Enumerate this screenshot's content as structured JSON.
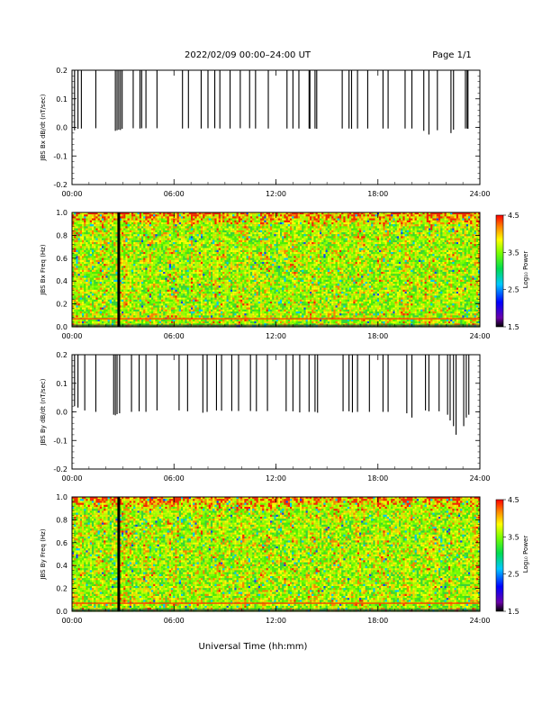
{
  "header": {
    "title": "2022/02/09  00:00–24:00 UT",
    "page": "Page 1/1"
  },
  "footer": {
    "xlabel": "Universal Time (hh:mm)"
  },
  "chart_data": [
    {
      "type": "line",
      "ylabel": "JBS Bx dB/dt (nT/sec)",
      "xticks": [
        "00:00",
        "06:00",
        "12:00",
        "18:00",
        "24:00"
      ],
      "yticks": [
        "-0.2",
        "-0.1",
        "0.0",
        "0.1",
        "0.2"
      ],
      "xlim": [
        0,
        24
      ],
      "ylim": [
        -0.2,
        0.2
      ],
      "spikes": [
        {
          "t": 0.15,
          "low": -0.01
        },
        {
          "t": 0.35,
          "low": -0.005
        },
        {
          "t": 0.55,
          "low": -0.004
        },
        {
          "t": 1.4,
          "low": -0.003
        },
        {
          "t": 2.55,
          "low": -0.012
        },
        {
          "t": 2.65,
          "low": -0.01
        },
        {
          "t": 2.75,
          "low": -0.008
        },
        {
          "t": 2.85,
          "low": -0.009
        },
        {
          "t": 2.95,
          "low": -0.005
        },
        {
          "t": 3.6,
          "low": -0.003
        },
        {
          "t": 4.0,
          "low": -0.004
        },
        {
          "t": 4.1,
          "low": -0.003
        },
        {
          "t": 4.35,
          "low": -0.003
        },
        {
          "t": 5.0,
          "low": -0.003
        },
        {
          "t": 6.5,
          "low": -0.004
        },
        {
          "t": 6.85,
          "low": -0.003
        },
        {
          "t": 7.6,
          "low": -0.004
        },
        {
          "t": 8.0,
          "low": -0.003
        },
        {
          "t": 8.4,
          "low": -0.003
        },
        {
          "t": 8.7,
          "low": -0.004
        },
        {
          "t": 9.3,
          "low": -0.004
        },
        {
          "t": 9.9,
          "low": -0.003
        },
        {
          "t": 10.45,
          "low": -0.003
        },
        {
          "t": 10.8,
          "low": -0.004
        },
        {
          "t": 11.55,
          "low": -0.004
        },
        {
          "t": 12.65,
          "low": -0.004
        },
        {
          "t": 13.0,
          "low": -0.004
        },
        {
          "t": 13.35,
          "low": -0.004
        },
        {
          "t": 13.95,
          "low": -0.004
        },
        {
          "t": 14.0,
          "low": -0.005
        },
        {
          "t": 14.3,
          "low": -0.004
        },
        {
          "t": 14.4,
          "low": -0.005
        },
        {
          "t": 15.9,
          "low": -0.004
        },
        {
          "t": 16.3,
          "low": -0.004
        },
        {
          "t": 16.45,
          "low": -0.005
        },
        {
          "t": 16.8,
          "low": -0.004
        },
        {
          "t": 17.4,
          "low": -0.004
        },
        {
          "t": 18.3,
          "low": -0.004
        },
        {
          "t": 18.6,
          "low": -0.004
        },
        {
          "t": 19.6,
          "low": -0.004
        },
        {
          "t": 20.0,
          "low": -0.004
        },
        {
          "t": 20.7,
          "low": -0.012
        },
        {
          "t": 21.0,
          "low": -0.025
        },
        {
          "t": 21.5,
          "low": -0.01
        },
        {
          "t": 22.3,
          "low": -0.02
        },
        {
          "t": 22.45,
          "low": -0.008
        },
        {
          "t": 23.15,
          "low": -0.004
        },
        {
          "t": 23.25,
          "low": -0.004
        },
        {
          "t": 23.3,
          "low": -0.005
        }
      ]
    },
    {
      "type": "heatmap",
      "ylabel": "JBS Bx Freq (Hz)",
      "xticks": [
        "00:00",
        "06:00",
        "12:00",
        "18:00",
        "24:00"
      ],
      "yticks": [
        "0.0",
        "0.2",
        "0.4",
        "0.6",
        "0.8",
        "1.0"
      ],
      "xlim": [
        0,
        24
      ],
      "ylim": [
        0,
        1.0
      ],
      "gap_time": 2.75,
      "line_freq": 0.07,
      "colorbar": {
        "label": "Log₁₀ Power",
        "ticks": [
          "1.5",
          "2.5",
          "3.5",
          "4.5"
        ],
        "range": [
          1.5,
          4.5
        ]
      }
    },
    {
      "type": "line",
      "ylabel": "JBS By dB/dt (nT/sec)",
      "xticks": [
        "00:00",
        "06:00",
        "12:00",
        "18:00",
        "24:00"
      ],
      "yticks": [
        "-0.2",
        "-0.1",
        "0.0",
        "0.1",
        "0.2"
      ],
      "xlim": [
        0,
        24
      ],
      "ylim": [
        -0.2,
        0.2
      ],
      "spikes": [
        {
          "t": 0.15,
          "low": 0.02
        },
        {
          "t": 0.35,
          "low": 0.015
        },
        {
          "t": 0.75,
          "low": 0.005
        },
        {
          "t": 1.4,
          "low": 0.0
        },
        {
          "t": 2.45,
          "low": -0.01
        },
        {
          "t": 2.55,
          "low": -0.012
        },
        {
          "t": 2.65,
          "low": -0.008
        },
        {
          "t": 2.8,
          "low": -0.005
        },
        {
          "t": 3.5,
          "low": 0.0
        },
        {
          "t": 3.95,
          "low": 0.002
        },
        {
          "t": 4.35,
          "low": 0.0
        },
        {
          "t": 5.0,
          "low": 0.005
        },
        {
          "t": 6.3,
          "low": 0.005
        },
        {
          "t": 6.8,
          "low": 0.002
        },
        {
          "t": 7.7,
          "low": -0.003
        },
        {
          "t": 7.95,
          "low": 0.0
        },
        {
          "t": 8.5,
          "low": 0.005
        },
        {
          "t": 8.8,
          "low": 0.004
        },
        {
          "t": 9.4,
          "low": 0.003
        },
        {
          "t": 9.8,
          "low": 0.003
        },
        {
          "t": 10.5,
          "low": 0.003
        },
        {
          "t": 10.85,
          "low": 0.002
        },
        {
          "t": 11.5,
          "low": 0.003
        },
        {
          "t": 12.6,
          "low": 0.002
        },
        {
          "t": 13.0,
          "low": 0.002
        },
        {
          "t": 13.4,
          "low": -0.002
        },
        {
          "t": 13.95,
          "low": 0.0
        },
        {
          "t": 14.3,
          "low": 0.0
        },
        {
          "t": 14.45,
          "low": -0.003
        },
        {
          "t": 15.95,
          "low": 0.002
        },
        {
          "t": 16.3,
          "low": 0.002
        },
        {
          "t": 16.5,
          "low": -0.002
        },
        {
          "t": 16.8,
          "low": 0.0
        },
        {
          "t": 17.5,
          "low": 0.0
        },
        {
          "t": 18.3,
          "low": 0.0
        },
        {
          "t": 18.6,
          "low": 0.0
        },
        {
          "t": 19.7,
          "low": -0.005
        },
        {
          "t": 20.0,
          "low": -0.02
        },
        {
          "t": 20.8,
          "low": 0.005
        },
        {
          "t": 21.0,
          "low": 0.002
        },
        {
          "t": 21.6,
          "low": 0.002
        },
        {
          "t": 22.1,
          "low": -0.01
        },
        {
          "t": 22.25,
          "low": -0.03
        },
        {
          "t": 22.45,
          "low": -0.05
        },
        {
          "t": 22.6,
          "low": -0.08
        },
        {
          "t": 23.05,
          "low": -0.05
        },
        {
          "t": 23.2,
          "low": -0.02
        },
        {
          "t": 23.35,
          "low": -0.01
        }
      ]
    },
    {
      "type": "heatmap",
      "ylabel": "JBS By Freq (Hz)",
      "xticks": [
        "00:00",
        "06:00",
        "12:00",
        "18:00",
        "24:00"
      ],
      "yticks": [
        "0.0",
        "0.2",
        "0.4",
        "0.6",
        "0.8",
        "1.0"
      ],
      "xlim": [
        0,
        24
      ],
      "ylim": [
        0,
        1.0
      ],
      "gap_time": 2.75,
      "line_freq": 0.07,
      "colorbar": {
        "label": "Log₁₀ Power",
        "ticks": [
          "1.5",
          "2.5",
          "3.5",
          "4.5"
        ],
        "range": [
          1.5,
          4.5
        ]
      }
    }
  ]
}
